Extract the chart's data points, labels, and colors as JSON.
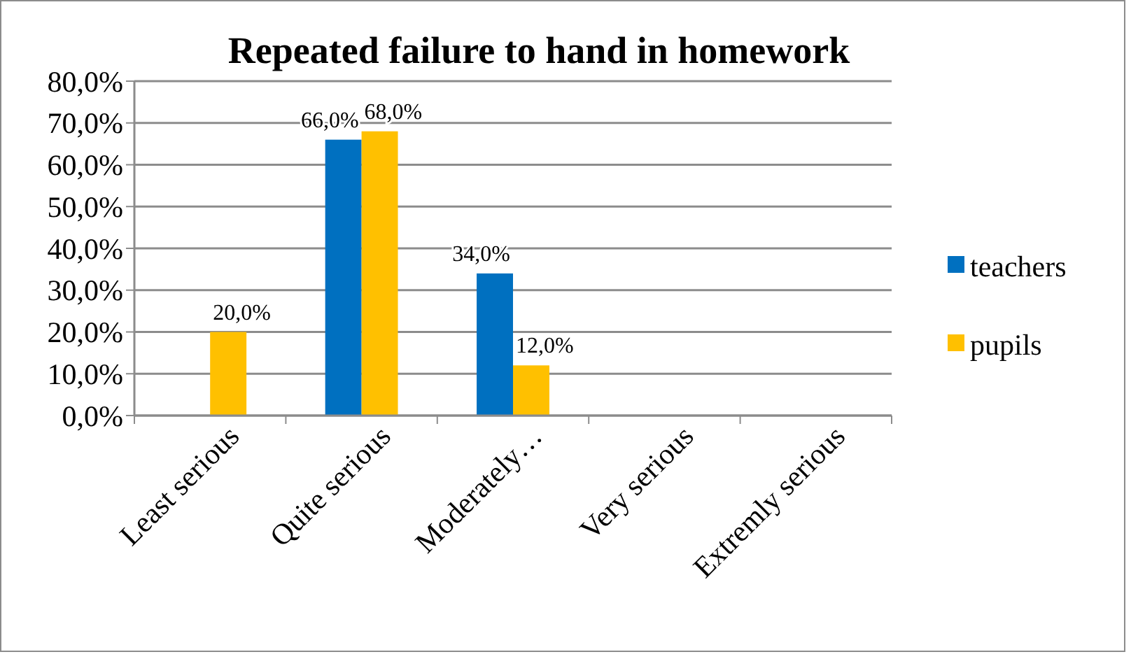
{
  "chart_data": {
    "type": "bar",
    "title": "Repeated failure to hand in homework",
    "categories": [
      "Least serious",
      "Quite  serious",
      "Moderately…",
      "Very serious",
      "Extremly serious"
    ],
    "series": [
      {
        "name": "teachers",
        "color": "#0070c0",
        "values": [
          null,
          66,
          34,
          null,
          null
        ],
        "value_labels": [
          null,
          "66,0%",
          "34,0%",
          null,
          null
        ]
      },
      {
        "name": "pupils",
        "color": "#ffc000",
        "values": [
          20,
          68,
          12,
          null,
          null
        ],
        "value_labels": [
          "20,0%",
          "68,0%",
          "12,0%",
          null,
          null
        ]
      }
    ],
    "ylim": [
      0,
      80
    ],
    "yticks": [
      {
        "value": 0,
        "label": "0,0%"
      },
      {
        "value": 10,
        "label": "10,0%"
      },
      {
        "value": 20,
        "label": "20,0%"
      },
      {
        "value": 30,
        "label": "30,0%"
      },
      {
        "value": 40,
        "label": "40,0%"
      },
      {
        "value": 50,
        "label": "50,0%"
      },
      {
        "value": 60,
        "label": "60,0%"
      },
      {
        "value": 70,
        "label": "70,0%"
      },
      {
        "value": 80,
        "label": "80,0%"
      }
    ],
    "grid": "y",
    "legend": "right"
  }
}
